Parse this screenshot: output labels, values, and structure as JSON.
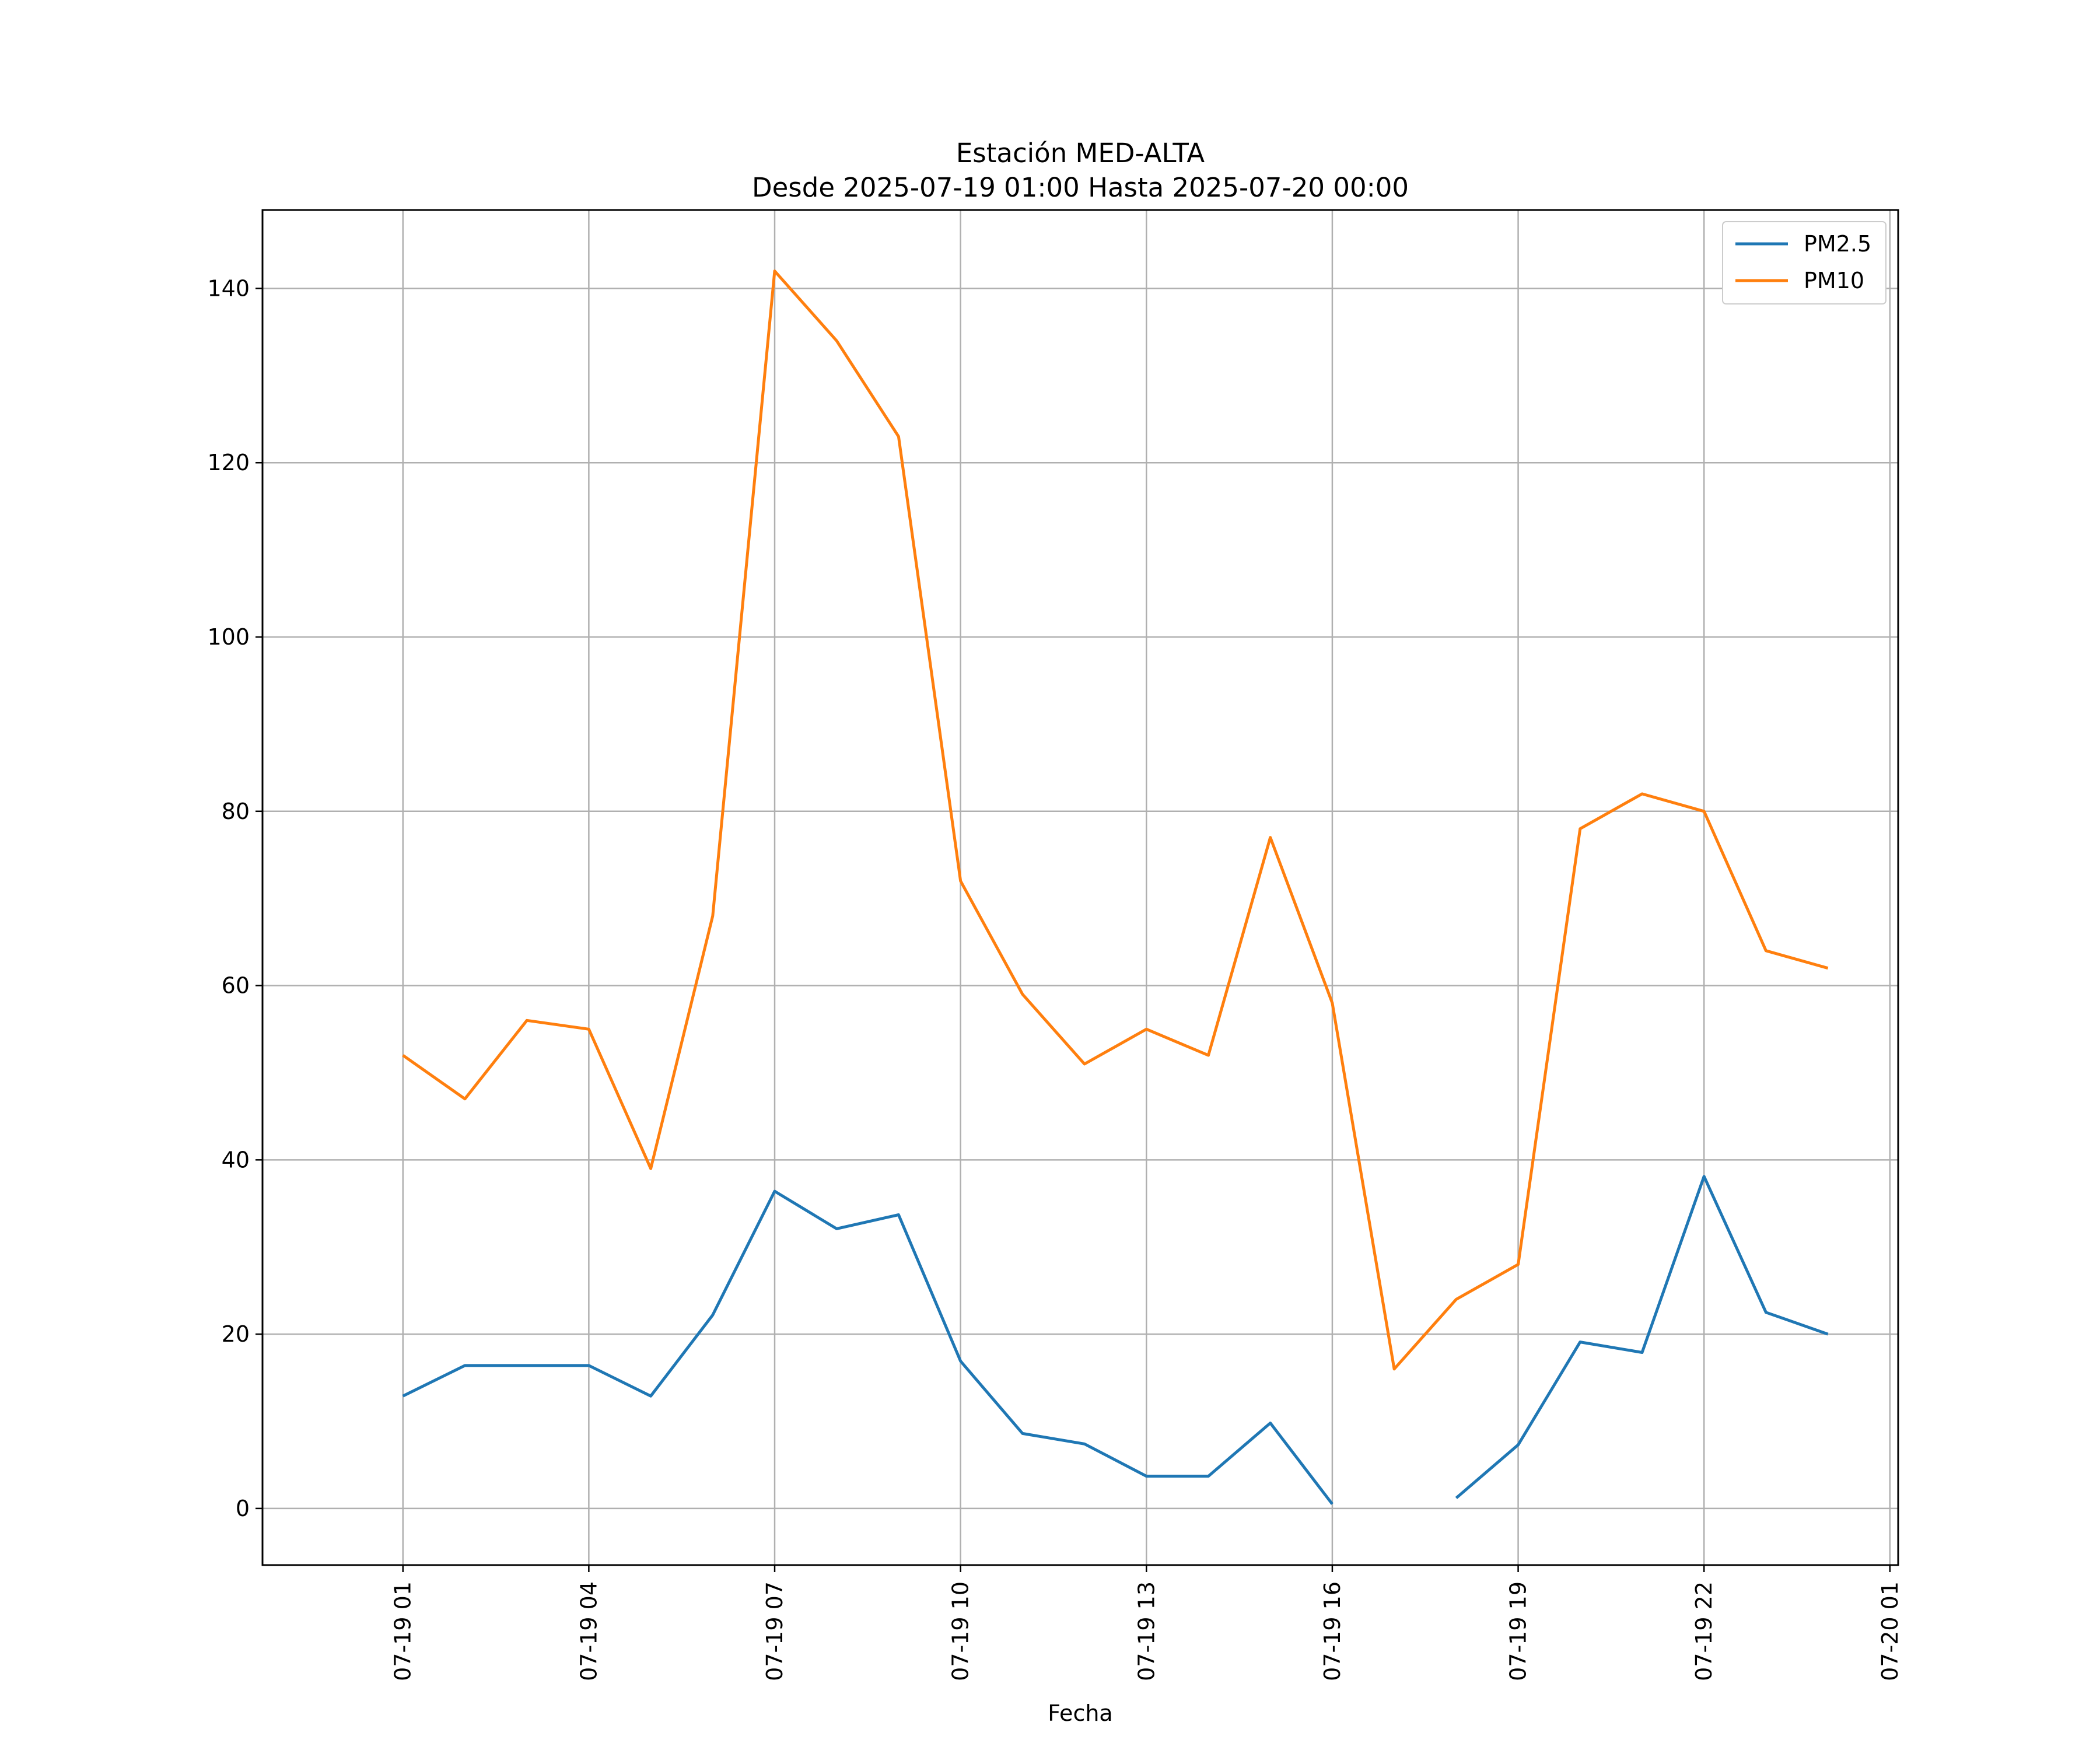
{
  "chart_data": {
    "type": "line",
    "title": "Estación MED-ALTA",
    "subtitle": "Desde 2025-07-19 01:00 Hasta 2025-07-20 00:00",
    "xlabel": "Fecha",
    "ylabel": "",
    "x": [
      "2025-07-19 01:00",
      "2025-07-19 02:00",
      "2025-07-19 03:00",
      "2025-07-19 04:00",
      "2025-07-19 05:00",
      "2025-07-19 06:00",
      "2025-07-19 07:00",
      "2025-07-19 08:00",
      "2025-07-19 09:00",
      "2025-07-19 10:00",
      "2025-07-19 11:00",
      "2025-07-19 12:00",
      "2025-07-19 13:00",
      "2025-07-19 14:00",
      "2025-07-19 15:00",
      "2025-07-19 16:00",
      "2025-07-19 17:00",
      "2025-07-19 18:00",
      "2025-07-19 19:00",
      "2025-07-19 20:00",
      "2025-07-19 21:00",
      "2025-07-19 22:00",
      "2025-07-19 23:00",
      "2025-07-20 00:00"
    ],
    "series": [
      {
        "name": "PM2.5",
        "color": "#1f77b4",
        "values": [
          12.9,
          16.4,
          16.4,
          16.4,
          12.9,
          22.2,
          36.4,
          32.1,
          33.7,
          16.9,
          8.6,
          7.4,
          3.7,
          3.7,
          9.8,
          0.5,
          null,
          1.2,
          7.3,
          19.1,
          17.9,
          38.1,
          22.5,
          20.0
        ]
      },
      {
        "name": "PM10",
        "color": "#ff7f0e",
        "values": [
          52,
          47,
          56,
          55,
          39,
          68,
          142,
          134,
          123,
          72,
          59,
          51,
          55,
          52,
          77,
          58,
          16,
          24,
          28,
          78,
          82,
          80,
          64,
          62
        ]
      }
    ],
    "xticks": [
      "07-19 01",
      "07-19 04",
      "07-19 07",
      "07-19 10",
      "07-19 13",
      "07-19 16",
      "07-19 19",
      "07-19 22",
      "07-20 01"
    ],
    "yticks": [
      0,
      20,
      40,
      60,
      80,
      100,
      120,
      140
    ],
    "xlim": [
      "2025-07-18 22:44",
      "2025-07-20 01:08"
    ],
    "ylim": [
      -6.5,
      149
    ],
    "grid": true,
    "legend_position": "top-right"
  }
}
